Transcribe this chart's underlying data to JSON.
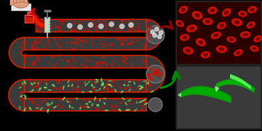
{
  "bg_color": "#000000",
  "channel_color": "#3a3a3a",
  "channel_edge_color": "#cc2200",
  "rbc_color": "#cc1100",
  "parasite_color": "#66ff66",
  "figsize": [
    3.76,
    1.89
  ],
  "dpi": 100,
  "channel_lw": 1.5,
  "rbc_photo_bg": "#2a0000",
  "parasite_photo_bg": "#3a3a3a",
  "sep_color": "#505050",
  "white_dot": "#bbbbbb",
  "arrow_red": "#880000",
  "arrow_green": "#008800",
  "inlet_red": "#cc0000",
  "hand_skin": "#e0a080",
  "sleeve_white": "#e8e8e8",
  "syringe_body": "#c0d8c0",
  "syringe_gray": "#888888"
}
